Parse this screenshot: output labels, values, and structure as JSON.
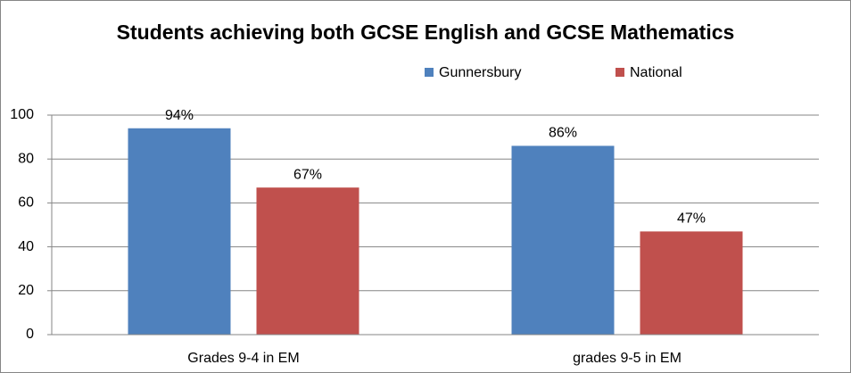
{
  "chart_data": {
    "type": "bar",
    "title": "Students achieving both GCSE English and GCSE Mathematics",
    "categories": [
      "Grades 9-4  in EM",
      "grades 9-5 in EM"
    ],
    "series": [
      {
        "name": "Gunnersbury",
        "color": "#4f81bd",
        "values": [
          94,
          86
        ],
        "value_labels": [
          "94%",
          "86%"
        ]
      },
      {
        "name": "National",
        "color": "#c0504d",
        "values": [
          67,
          47
        ],
        "value_labels": [
          "67%",
          "47%"
        ]
      }
    ],
    "ylim": [
      0,
      100
    ],
    "yticks": [
      0,
      20,
      40,
      60,
      80,
      100
    ],
    "grid": true,
    "legend": "top-right"
  }
}
